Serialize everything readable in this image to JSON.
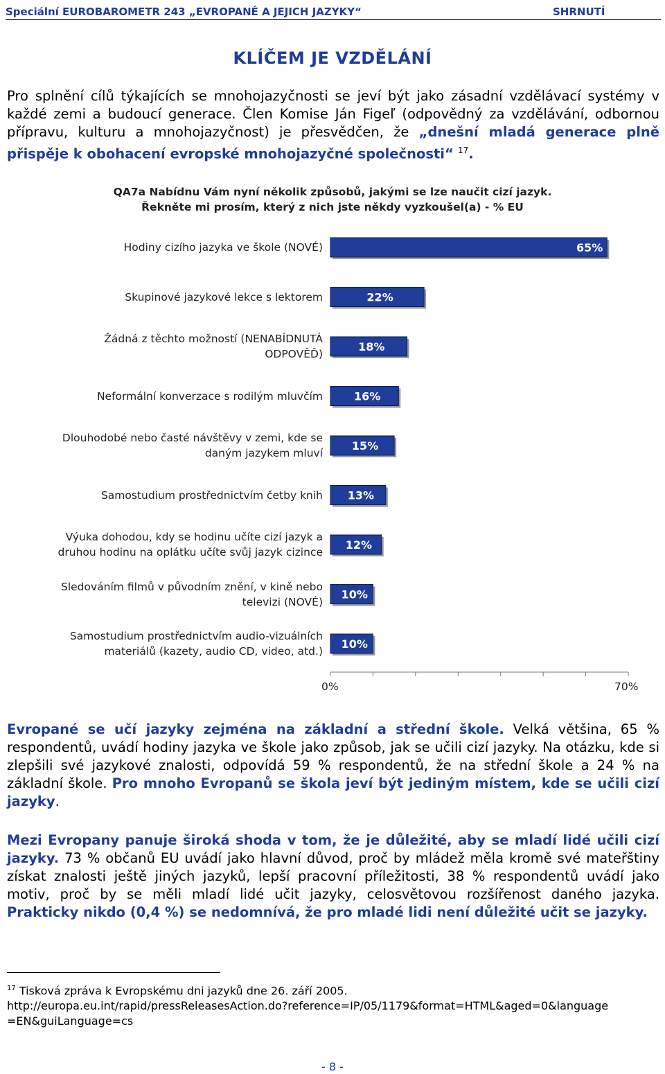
{
  "header": {
    "left": "Speciální EUROBAROMETR 243 „EVROPANÉ A JEJICH JAZYKY“",
    "right": "SHRNUTÍ"
  },
  "title": "KLÍČEM JE VZDĚLÁNÍ",
  "intro": {
    "text": "Pro splnění cílů týkajících se mnohojazyčnosti se jeví být jako zásadní vzdělávací systémy v každé zemi a budoucí generace. Člen Komise Ján Figeľ (odpovědný za vzdělávání, odbornou přípravu, kulturu a mnohojazyčnost) je přesvědčen, že ",
    "quote": "„dnešní mladá generace plně přispěje k obohacení evropské mnohojazyčné společnosti“",
    "footnote_ref": "17",
    "end": "."
  },
  "question": {
    "line1": "QA7a Nabídnu Vám nyní několik způsobů, jakými se lze naučit cizí jazyk.",
    "line2": "Řekněte mi prosím, který z nich jste někdy vyzkoušel(a) - % EU"
  },
  "chart_data": {
    "type": "bar",
    "orientation": "horizontal",
    "categories": [
      "Hodiny cizího jazyka ve škole (NOVÉ)",
      "Skupinové jazykové lekce s lektorem",
      "Žádná z těchto možností (NENABÍDNUTÁ ODPOVĚĎ)",
      "Neformální konverzace s rodilým mluvčím",
      "Dlouhodobé nebo časté návštěvy v zemi, kde se daným jazykem mluví",
      "Samostudium prostřednictvím četby knih",
      "Výuka dohodou, kdy se hodinu učíte cizí jazyk a druhou hodinu na oplátku učíte svůj jazyk cizince",
      "Sledováním filmů v původním znění, v kině nebo televizi (NOVÉ)",
      "Samostudium prostřednictvím audio-vizuálních materiálů (kazety, audio CD, video, atd.)"
    ],
    "category_lines": [
      [
        "Hodiny cizího jazyka ve škole (NOVÉ)"
      ],
      [
        "Skupinové jazykové lekce s lektorem"
      ],
      [
        "Žádná z těchto možností (NENABÍDNUTÁ",
        "ODPOVĚĎ)"
      ],
      [
        "Neformální konverzace s rodilým mluvčím"
      ],
      [
        "Dlouhodobé nebo časté návštěvy v zemi, kde se",
        "daným jazykem mluví"
      ],
      [
        "Samostudium prostřednictvím četby knih"
      ],
      [
        "Výuka dohodou, kdy se hodinu učíte cizí jazyk a",
        "druhou hodinu na oplátku učíte svůj jazyk cizince"
      ],
      [
        "Sledováním filmů v původním znění, v kině nebo",
        "televizi (NOVÉ)"
      ],
      [
        "Samostudium prostřednictvím audio-vizuálních",
        "materiálů (kazety, audio CD, video, atd.)"
      ]
    ],
    "values": [
      65,
      22,
      18,
      16,
      15,
      13,
      12,
      10,
      10
    ],
    "value_labels": [
      "65%",
      "22%",
      "18%",
      "16%",
      "15%",
      "13%",
      "12%",
      "10%",
      "10%"
    ],
    "xlim": [
      0,
      70
    ],
    "xticks": [
      "0%",
      "70%"
    ],
    "bar_color": "#1f3d99",
    "label_color": "#ffffff"
  },
  "para1": {
    "s1": "Evropané se učí jazyky zejména na základní a střední škole.",
    "s2": " Velká většina, 65 % respondentů, uvádí hodiny jazyka ve škole jako způsob, jak se učili cizí jazyky. Na otázku, kde si zlepšili své jazykové znalosti, odpovídá 59 % respondentů, že na střední škole a 24 % na základní škole. ",
    "s3": "Pro mnoho Evropanů se škola jeví být jediným místem, kde se učili cizí jazyky",
    "s4": "."
  },
  "para2": {
    "s1": "Mezi Evropany panuje široká shoda v tom, že je důležité, aby se mladí lidé učili cizí jazyky.",
    "s2": " 73 % občanů EU uvádí jako hlavní důvod, proč by mládež měla kromě své mateřštiny získat znalosti ještě jiných jazyků, lepší pracovní příležitosti, 38 % respondentů uvádí jako motiv, proč by se měli mladí lidé učit jazyky, celosvětovou rozšířenost daného jazyka. ",
    "s3": "Prakticky nikdo (0,4 %) se nedomnívá, že pro mladé lidi není důležité učit se jazyky."
  },
  "footnote": {
    "num": "17",
    "text": " Tisková zpráva k Evropskému dni jazyků dne 26. září 2005.",
    "url1": "http://europa.eu.int/rapid/pressReleasesAction.do?reference=IP/05/1179&format=HTML&aged=0&language",
    "url2": "=EN&guiLanguage=cs"
  },
  "page_number": "- 8 -"
}
